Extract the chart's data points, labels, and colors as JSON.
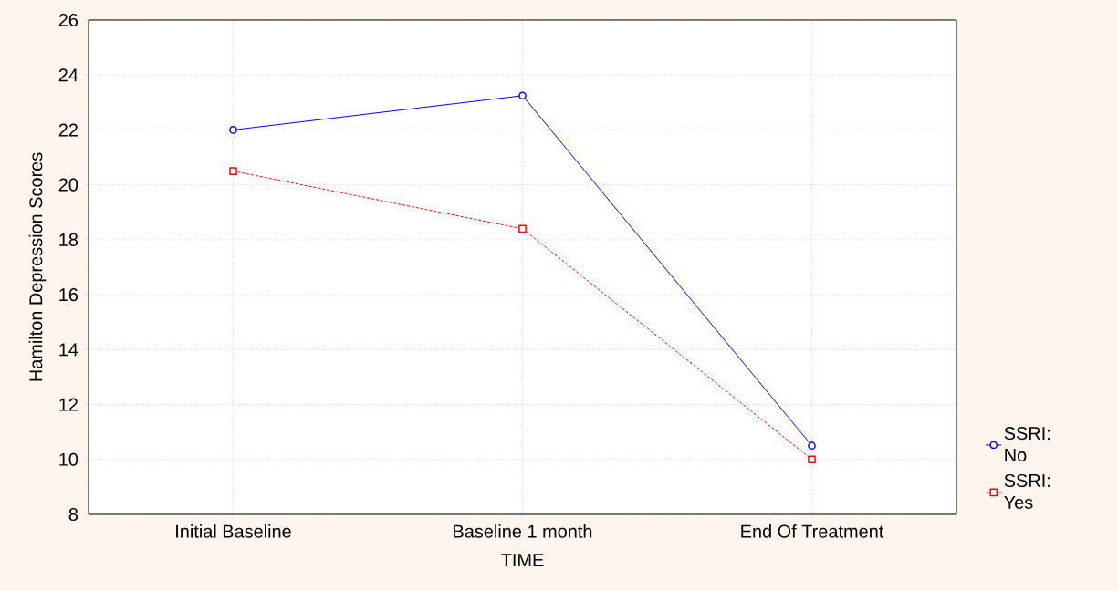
{
  "chart_data": {
    "type": "line",
    "xlabel": "TIME",
    "ylabel": "Hamilton Depression Scores",
    "categories": [
      "Initial Baseline",
      "Baseline 1 month",
      "End Of Treatment"
    ],
    "ylim": [
      8,
      26
    ],
    "yticks": [
      8,
      10,
      12,
      14,
      16,
      18,
      20,
      22,
      24,
      26
    ],
    "grid": true,
    "legend": "right",
    "series": [
      {
        "name": "SSRI: No",
        "color": "#0000ff",
        "values": [
          22.0,
          23.25,
          10.5
        ],
        "marker": "circle",
        "line_style": "solid"
      },
      {
        "name": "SSRI: Yes",
        "color": "#ff0000",
        "values": [
          20.5,
          18.4,
          10.0
        ],
        "marker": "square",
        "line_style": "dashed"
      }
    ]
  }
}
